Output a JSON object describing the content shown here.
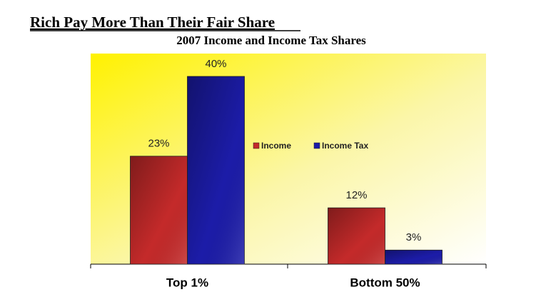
{
  "chart_data": {
    "type": "bar",
    "title": "Rich Pay More Than Their Fair Share",
    "subtitle": "2007 Income and Income Tax Shares",
    "categories": [
      "Top 1%",
      "Bottom 50%"
    ],
    "series": [
      {
        "name": "Income",
        "color": "#c42a2a",
        "values": [
          23,
          12
        ],
        "value_labels": [
          "23%",
          "12%"
        ]
      },
      {
        "name": "Income Tax",
        "color": "#1c1ca8",
        "values": [
          40,
          3
        ],
        "value_labels": [
          "40%",
          "3%"
        ]
      }
    ]
  }
}
